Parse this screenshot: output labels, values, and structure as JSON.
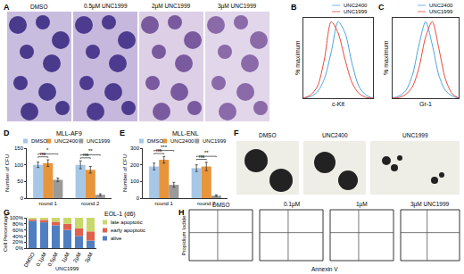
{
  "chart_data": [
    {
      "panel": "B",
      "type": "line",
      "x_label": "c-Kit",
      "y_label": "% maximum",
      "x": [
        0,
        10,
        20,
        30,
        40,
        50,
        60,
        70,
        80,
        90,
        100
      ],
      "series": [
        {
          "name": "UNC2400",
          "color": "#4aa3df",
          "values": [
            0,
            2,
            8,
            25,
            60,
            100,
            85,
            45,
            15,
            4,
            0
          ]
        },
        {
          "name": "UNC1999",
          "color": "#e8473b",
          "values": [
            0,
            4,
            15,
            50,
            100,
            85,
            50,
            20,
            6,
            1,
            0
          ]
        }
      ],
      "xlim": [
        0,
        100
      ],
      "ylim": [
        0,
        105
      ],
      "tick_labels": false
    },
    {
      "panel": "C",
      "type": "line",
      "x_label": "Gr-1",
      "y_label": "% maximum",
      "x": [
        0,
        10,
        20,
        30,
        40,
        50,
        60,
        70,
        80,
        90,
        100
      ],
      "series": [
        {
          "name": "UNC2400",
          "color": "#4aa3df",
          "values": [
            0,
            3,
            10,
            30,
            70,
            100,
            70,
            30,
            10,
            3,
            0
          ]
        },
        {
          "name": "UNC1999",
          "color": "#e8473b",
          "values": [
            0,
            1,
            5,
            15,
            40,
            80,
            100,
            65,
            25,
            6,
            0
          ]
        }
      ],
      "xlim": [
        0,
        100
      ],
      "ylim": [
        0,
        105
      ],
      "tick_labels": false
    },
    {
      "panel": "D",
      "type": "bar",
      "title": "MLL-AF9",
      "y_label": "Number of CFU",
      "categories": [
        "round 1",
        "round 2"
      ],
      "series": [
        {
          "name": "DMSO",
          "color": "#a7c7e7",
          "values": [
            100,
            100
          ],
          "error": [
            8,
            12
          ]
        },
        {
          "name": "UNC2400",
          "color": "#e8943a",
          "values": [
            105,
            85
          ],
          "error": [
            10,
            10
          ]
        },
        {
          "name": "UNC1999",
          "color": "#9a9a9a",
          "values": [
            55,
            10
          ],
          "error": [
            5,
            3
          ]
        }
      ],
      "ylim": [
        0,
        150
      ],
      "yticks": [
        0,
        50,
        100,
        150
      ],
      "annotations": [
        {
          "category": "round 1",
          "pair": [
            "DMSO",
            "UNC2400"
          ],
          "text": "ns"
        },
        {
          "category": "round 1",
          "pair": [
            "DMSO",
            "UNC1999"
          ],
          "text": "*"
        },
        {
          "category": "round 2",
          "pair": [
            "DMSO",
            "UNC2400"
          ],
          "text": "ns"
        },
        {
          "category": "round 2",
          "pair": [
            "DMSO",
            "UNC1999"
          ],
          "text": "**"
        }
      ]
    },
    {
      "panel": "E",
      "type": "bar",
      "title": "MLL-ENL",
      "y_label": "Number of CFU",
      "categories": [
        "round 1",
        "round 2"
      ],
      "series": [
        {
          "name": "DMSO",
          "color": "#a7c7e7",
          "values": [
            190,
            180
          ],
          "error": [
            20,
            20
          ]
        },
        {
          "name": "UNC2400",
          "color": "#e8943a",
          "values": [
            230,
            190
          ],
          "error": [
            20,
            25
          ]
        },
        {
          "name": "UNC1999",
          "color": "#9a9a9a",
          "values": [
            80,
            15
          ],
          "error": [
            15,
            5
          ]
        }
      ],
      "ylim": [
        0,
        300
      ],
      "yticks": [
        0,
        100,
        200,
        300
      ],
      "annotations": [
        {
          "category": "round 1",
          "pair": [
            "DMSO",
            "UNC2400"
          ],
          "text": "ns"
        },
        {
          "category": "round 1",
          "pair": [
            "DMSO",
            "UNC1999"
          ],
          "text": "***"
        },
        {
          "category": "round 2",
          "pair": [
            "DMSO",
            "UNC2400"
          ],
          "text": "ns"
        },
        {
          "category": "round 2",
          "pair": [
            "DMSO",
            "UNC1999"
          ],
          "text": "**"
        }
      ]
    },
    {
      "panel": "G",
      "type": "bar",
      "stacked": true,
      "title": "EOL-1 (d6)",
      "y_label": "Cell Percentage",
      "categories": [
        "DMSO",
        "0.1µM",
        "0.5µM",
        "1µM",
        "2µM",
        "3µM"
      ],
      "series": [
        {
          "name": "alive",
          "color": "#4f7fc0",
          "values": [
            90,
            85,
            75,
            60,
            40,
            25
          ]
        },
        {
          "name": "early apoptotic",
          "color": "#e0604e",
          "values": [
            5,
            8,
            12,
            20,
            25,
            30
          ]
        },
        {
          "name": "late apoptotic",
          "color": "#c9d86b",
          "values": [
            5,
            7,
            13,
            20,
            35,
            45
          ]
        }
      ],
      "ylim": [
        0,
        100
      ],
      "yticks": [
        {
          "value": 0,
          "label": "0%"
        },
        {
          "value": 20,
          "label": "20%"
        },
        {
          "value": 40,
          "label": "40%"
        },
        {
          "value": 60,
          "label": "60%"
        },
        {
          "value": 80,
          "label": "80%"
        },
        {
          "value": 100,
          "label": "100%"
        }
      ],
      "annotations": [
        {
          "text": "UNC1999",
          "categories": [
            "0.1µM",
            "0.5µM",
            "1µM",
            "2µM",
            "3µM"
          ]
        }
      ]
    }
  ],
  "image_panels": [
    {
      "panel": "A",
      "type": "image",
      "labels": [
        "DMSO",
        "0.5µM UNC1999",
        "2µM UNC1999",
        "3µM UNC1999"
      ]
    },
    {
      "panel": "F",
      "type": "image",
      "labels": [
        "DMSO",
        "UNC2400",
        "UNC1999"
      ]
    },
    {
      "panel": "H",
      "type": "image",
      "labels": [
        "DMSO",
        "0.1µM",
        "1µM",
        "3µM UNC1999"
      ],
      "x_label": "Annexin V",
      "y_label": "Propidium Iodide"
    }
  ]
}
